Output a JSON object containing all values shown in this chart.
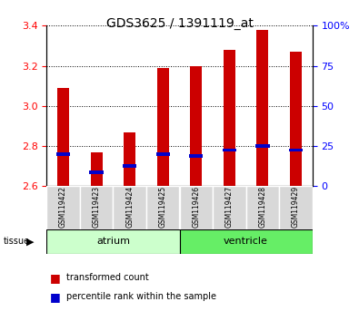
{
  "title": "GDS3625 / 1391119_at",
  "samples": [
    "GSM119422",
    "GSM119423",
    "GSM119424",
    "GSM119425",
    "GSM119426",
    "GSM119427",
    "GSM119428",
    "GSM119429"
  ],
  "transformed_count": [
    3.09,
    2.77,
    2.87,
    3.19,
    3.2,
    3.28,
    3.38,
    3.27
  ],
  "percentile_rank": [
    2.76,
    2.67,
    2.7,
    2.76,
    2.75,
    2.78,
    2.8,
    2.78
  ],
  "ylim": [
    2.6,
    3.4
  ],
  "yticks_left": [
    2.6,
    2.8,
    3.0,
    3.2,
    3.4
  ],
  "yticks_right_pct": [
    0,
    25,
    50,
    75,
    100
  ],
  "yticks_right_labels": [
    "0",
    "25",
    "50",
    "75",
    "100%"
  ],
  "bar_color": "#cc0000",
  "blue_color": "#0000cc",
  "atrium_color": "#ccffcc",
  "ventricle_color": "#66ee66",
  "sample_bg_color": "#d8d8d8",
  "bar_width": 0.35,
  "base_value": 2.6,
  "n_atrium": 4,
  "n_ventricle": 4
}
